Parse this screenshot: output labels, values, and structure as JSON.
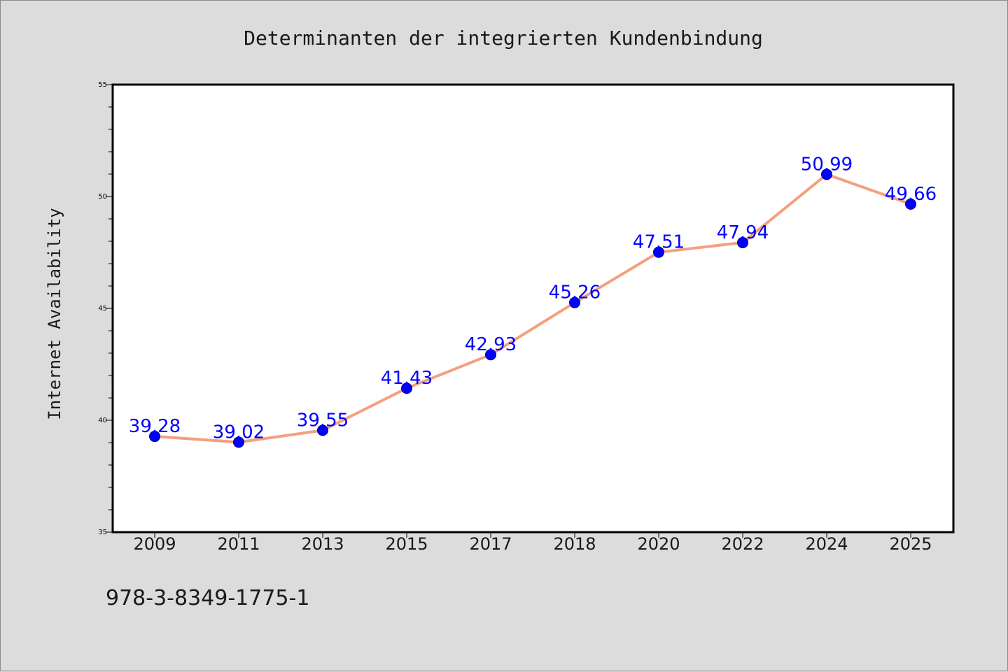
{
  "chart_data": {
    "type": "line",
    "title": "Determinanten der integrierten Kundenbindung",
    "xlabel": "",
    "ylabel": "Internet Availability",
    "categories": [
      "2009",
      "2011",
      "2013",
      "2015",
      "2017",
      "2018",
      "2020",
      "2022",
      "2024",
      "2025"
    ],
    "series": [
      {
        "values": [
          39.28,
          39.02,
          39.55,
          41.43,
          42.93,
          45.26,
          47.51,
          47.94,
          50.99,
          49.66
        ],
        "labels": [
          "39.28",
          "39.02",
          "39.55",
          "41.43",
          "42.93",
          "45.26",
          "47.51",
          "47.94",
          "50.99",
          "49.66"
        ],
        "line_color": "#f4a07e",
        "marker_color": "#0000ff",
        "label_color": "#0000ff"
      }
    ],
    "ylim": [
      35,
      55
    ],
    "yticks": [
      "35",
      "40",
      "45",
      "50",
      "55"
    ],
    "grid": false,
    "legend": "none"
  },
  "footer_text": "978-3-8349-1775-1",
  "colors": {
    "background": "#dcdcdc",
    "plot_background": "#ffffff",
    "axis": "#000000"
  }
}
